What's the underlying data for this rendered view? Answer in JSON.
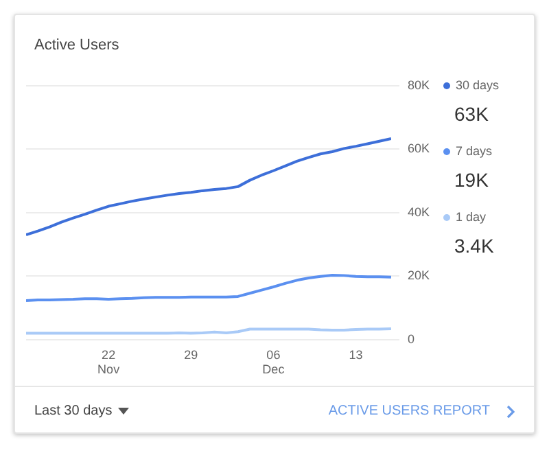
{
  "chart_data": {
    "type": "line",
    "title": "Active Users",
    "x": [
      "--11-15",
      "--11-16",
      "--11-17",
      "--11-18",
      "--11-19",
      "--11-20",
      "--11-21",
      "--11-22",
      "--11-23",
      "--11-24",
      "--11-25",
      "--11-26",
      "--11-27",
      "--11-28",
      "--11-29",
      "--11-30",
      "--12-01",
      "--12-02",
      "--12-03",
      "--12-04",
      "--12-05",
      "--12-06",
      "--12-07",
      "--12-08",
      "--12-09",
      "--12-10",
      "--12-11",
      "--12-12",
      "--12-13",
      "--12-14",
      "--12-15",
      "--12-16"
    ],
    "series": [
      {
        "name": "30 days",
        "color": "#3d6fd9",
        "values": [
          33000,
          34200,
          35500,
          37000,
          38300,
          39500,
          40800,
          42000,
          42800,
          43600,
          44300,
          44900,
          45500,
          46000,
          46400,
          46900,
          47300,
          47600,
          48200,
          50200,
          51800,
          53200,
          54700,
          56200,
          57400,
          58500,
          59200,
          60200,
          60900,
          61700,
          62500,
          63300
        ]
      },
      {
        "name": "7 days",
        "color": "#5b90f0",
        "values": [
          12300,
          12500,
          12500,
          12600,
          12700,
          12900,
          12900,
          12700,
          12900,
          13000,
          13200,
          13300,
          13300,
          13300,
          13400,
          13400,
          13400,
          13400,
          13600,
          14600,
          15600,
          16600,
          17700,
          18700,
          19400,
          19900,
          20300,
          20200,
          19900,
          19800,
          19800,
          19700
        ]
      },
      {
        "name": "1 day",
        "color": "#a9caf7",
        "values": [
          2000,
          2000,
          2000,
          2000,
          2000,
          2000,
          2000,
          2000,
          2000,
          2000,
          2000,
          2000,
          2000,
          2100,
          2000,
          2100,
          2400,
          2100,
          2500,
          3300,
          3300,
          3300,
          3300,
          3300,
          3300,
          3100,
          3000,
          3000,
          3200,
          3300,
          3300,
          3400
        ]
      }
    ],
    "xlim": [
      "--11-15",
      "--12-16"
    ],
    "xticks": [
      {
        "value": "--11-22",
        "label": "22\nNov"
      },
      {
        "value": "--11-29",
        "label": "29"
      },
      {
        "value": "--12-06",
        "label": "06\nDec"
      },
      {
        "value": "--12-13",
        "label": "13"
      }
    ],
    "ylim": [
      0,
      80000
    ],
    "yticks": [
      {
        "value": 0,
        "label": "0"
      },
      {
        "value": 20000,
        "label": "20K"
      },
      {
        "value": 40000,
        "label": "40K"
      },
      {
        "value": 60000,
        "label": "60K"
      },
      {
        "value": 80000,
        "label": "80K"
      }
    ],
    "grid": "y",
    "legend": "right",
    "marker": "none",
    "line_style": "solid",
    "annotations": [
      "63K",
      "19K",
      "3.4K",
      "Last 30 days",
      "ACTIVE USERS REPORT"
    ]
  }
}
